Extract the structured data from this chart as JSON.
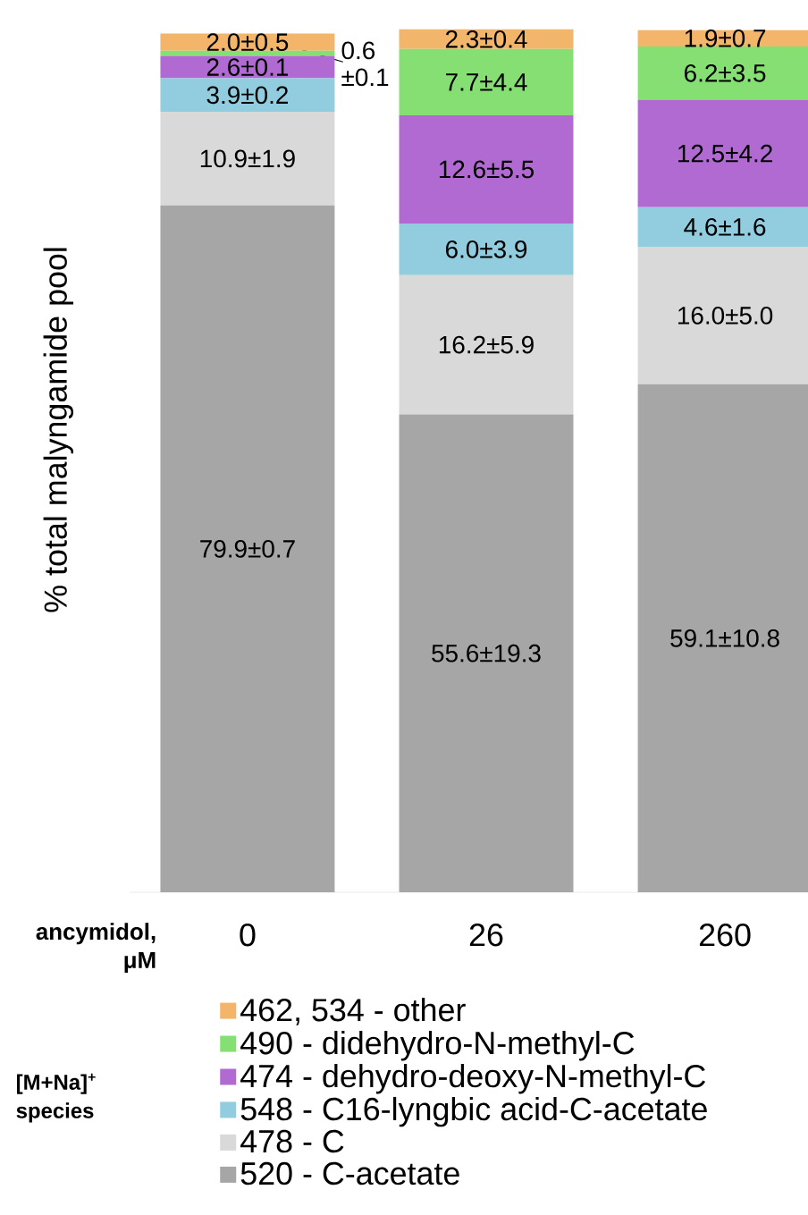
{
  "chart_data": {
    "type": "bar",
    "stacked": true,
    "ylabel": "% total  malyngamide pool",
    "xlabel": "ancymidol, μM",
    "legend_title": "[M+Na]$^{+}$ species",
    "categories": [
      "0",
      "26",
      "260"
    ],
    "ylim": [
      0,
      101
    ],
    "legend": "bottom",
    "series": [
      {
        "name": "520 - C-acetate",
        "color": "#a6a6a6",
        "values": [
          79.9,
          55.6,
          59.1
        ],
        "value_labels": [
          "79.9±0.7",
          "55.6±19.3",
          "59.1±10.8"
        ]
      },
      {
        "name": "478 - C",
        "color": "#d9d9d9",
        "values": [
          10.9,
          16.2,
          16.0
        ],
        "value_labels": [
          "10.9±1.9",
          "16.2±5.9",
          "16.0±5.0"
        ]
      },
      {
        "name": "548 - C16-lyngbic acid-C-acetate",
        "color": "#92cddf",
        "values": [
          3.9,
          6.0,
          4.6
        ],
        "value_labels": [
          "3.9±0.2",
          "6.0±3.9",
          "4.6±1.6"
        ]
      },
      {
        "name": "474 - dehydro-deoxy-N-methyl-C",
        "color": "#b06ad2",
        "values": [
          2.6,
          12.6,
          12.5
        ],
        "value_labels": [
          "2.6±0.1",
          "12.6±5.5",
          "12.5±4.2"
        ]
      },
      {
        "name": "490 - didehydro-N-methyl-C",
        "color": "#86df73",
        "values": [
          0.6,
          7.7,
          6.2
        ],
        "value_labels": [
          "0.6 ±0.1",
          "7.7±4.4",
          "6.2±3.5"
        ]
      },
      {
        "name": "462, 534 - other",
        "color": "#f2b56a",
        "values": [
          2.0,
          2.3,
          1.9
        ],
        "value_labels": [
          "2.0±0.5",
          "2.3±0.4",
          "1.9±0.7"
        ]
      }
    ]
  }
}
